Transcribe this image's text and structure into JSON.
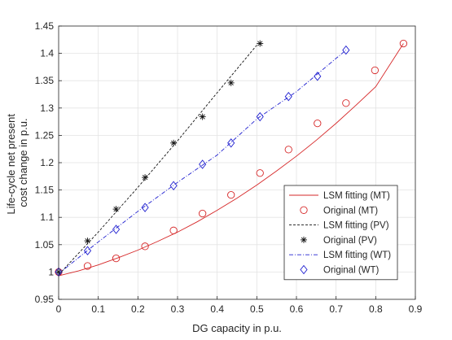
{
  "chart_data": {
    "type": "line",
    "title": "",
    "xlabel": "DG capacity in p.u.",
    "ylabel_lines": [
      "Life-cycle net present",
      "cost change in p.u."
    ],
    "xlim": [
      0,
      0.9
    ],
    "ylim": [
      0.95,
      1.45
    ],
    "xticks": [
      0,
      0.1,
      0.2,
      0.3,
      0.4,
      0.5,
      0.6,
      0.7,
      0.8,
      0.9
    ],
    "xtick_labels": [
      "0",
      "0.1",
      "0.2",
      "0.3",
      "0.4",
      "0.5",
      "0.6",
      "0.7",
      "0.8",
      "0.9"
    ],
    "yticks": [
      0.95,
      1.0,
      1.05,
      1.1,
      1.15,
      1.2,
      1.25,
      1.3,
      1.35,
      1.4,
      1.45
    ],
    "ytick_labels": [
      "0.95",
      "1",
      "1.05",
      "1.1",
      "1.15",
      "1.2",
      "1.25",
      "1.3",
      "1.35",
      "1.4",
      "1.45"
    ],
    "grid": true,
    "legend_position": "lower-right",
    "series": [
      {
        "name": "LSM fitting (MT)",
        "kind": "line",
        "style": "solid",
        "color": "#d62728",
        "x": [
          0,
          0.05,
          0.1,
          0.15,
          0.2,
          0.25,
          0.3,
          0.35,
          0.4,
          0.45,
          0.5,
          0.55,
          0.6,
          0.65,
          0.7,
          0.75,
          0.8,
          0.87
        ],
        "y": [
          0.993,
          1.002,
          1.013,
          1.026,
          1.04,
          1.056,
          1.073,
          1.092,
          1.113,
          1.135,
          1.159,
          1.185,
          1.212,
          1.241,
          1.272,
          1.305,
          1.339,
          1.418
        ]
      },
      {
        "name": "Original (MT)",
        "kind": "marker",
        "marker": "circle",
        "color": "#d62728",
        "x": [
          0,
          0.073,
          0.145,
          0.218,
          0.29,
          0.363,
          0.435,
          0.508,
          0.58,
          0.653,
          0.725,
          0.798,
          0.87
        ],
        "y": [
          1.0,
          1.011,
          1.025,
          1.047,
          1.076,
          1.107,
          1.141,
          1.181,
          1.224,
          1.272,
          1.309,
          1.369,
          1.418
        ]
      },
      {
        "name": "LSM fitting (PV)",
        "kind": "line",
        "style": "dashed",
        "color": "#111111",
        "x": [
          0,
          0.1,
          0.2,
          0.3,
          0.4,
          0.5
        ],
        "y": [
          0.995,
          1.073,
          1.155,
          1.24,
          1.328,
          1.415
        ]
      },
      {
        "name": "Original (PV)",
        "kind": "marker",
        "marker": "asterisk",
        "color": "#111111",
        "x": [
          0,
          0.073,
          0.145,
          0.218,
          0.29,
          0.363,
          0.435,
          0.508
        ],
        "y": [
          1.0,
          1.057,
          1.115,
          1.173,
          1.236,
          1.284,
          1.346,
          1.418
        ]
      },
      {
        "name": "LSM fitting (WT)",
        "kind": "line",
        "style": "dashdot",
        "color": "#2020d0",
        "x": [
          0,
          0.1,
          0.2,
          0.3,
          0.4,
          0.5,
          0.6,
          0.725
        ],
        "y": [
          0.997,
          1.055,
          1.111,
          1.164,
          1.214,
          1.28,
          1.33,
          1.406
        ]
      },
      {
        "name": "Original (WT)",
        "kind": "marker",
        "marker": "diamond",
        "color": "#2020d0",
        "x": [
          0,
          0.073,
          0.145,
          0.218,
          0.29,
          0.363,
          0.435,
          0.508,
          0.58,
          0.653,
          0.725
        ],
        "y": [
          1.0,
          1.039,
          1.078,
          1.118,
          1.158,
          1.197,
          1.236,
          1.284,
          1.321,
          1.358,
          1.406
        ]
      }
    ]
  }
}
